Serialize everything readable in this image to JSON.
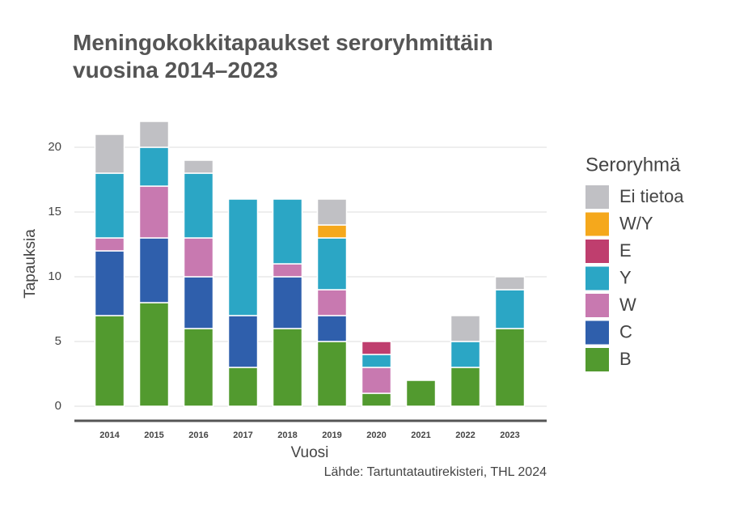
{
  "chart_data": {
    "type": "stacked-bar",
    "title": "Meningokokkitapaukset seroryhmittäin vuosina 2014–2023",
    "x_label": "Vuosi",
    "y_label": "Tapauksia",
    "source": "Lähde: Tartuntatautirekisteri, THL 2024",
    "legend_title": "Seroryhmä",
    "categories": [
      "2014",
      "2015",
      "2016",
      "2017",
      "2018",
      "2019",
      "2020",
      "2021",
      "2022",
      "2023"
    ],
    "series": [
      {
        "name": "B",
        "color": "#529a2f",
        "values": [
          7,
          8,
          6,
          3,
          6,
          5,
          1,
          2,
          3,
          6
        ]
      },
      {
        "name": "C",
        "color": "#2f5fac",
        "values": [
          5,
          5,
          4,
          4,
          4,
          2,
          0,
          0,
          0,
          0
        ]
      },
      {
        "name": "W",
        "color": "#c879b0",
        "values": [
          1,
          4,
          3,
          0,
          1,
          2,
          2,
          0,
          0,
          0
        ]
      },
      {
        "name": "Y",
        "color": "#2ba6c5",
        "values": [
          5,
          3,
          5,
          9,
          5,
          4,
          1,
          0,
          2,
          3
        ]
      },
      {
        "name": "E",
        "color": "#bf3e6e",
        "values": [
          0,
          0,
          0,
          0,
          0,
          0,
          1,
          0,
          0,
          0
        ]
      },
      {
        "name": "W/Y",
        "color": "#f5a81c",
        "values": [
          0,
          0,
          0,
          0,
          0,
          1,
          0,
          0,
          0,
          0
        ]
      },
      {
        "name": "Ei tietoa",
        "color": "#c0c0c4",
        "values": [
          3,
          2,
          1,
          0,
          0,
          2,
          0,
          0,
          2,
          1
        ]
      }
    ],
    "ylim": [
      0,
      22
    ],
    "yticks": [
      0,
      5,
      10,
      15,
      20
    ],
    "grid": true,
    "legend_position": "right"
  }
}
